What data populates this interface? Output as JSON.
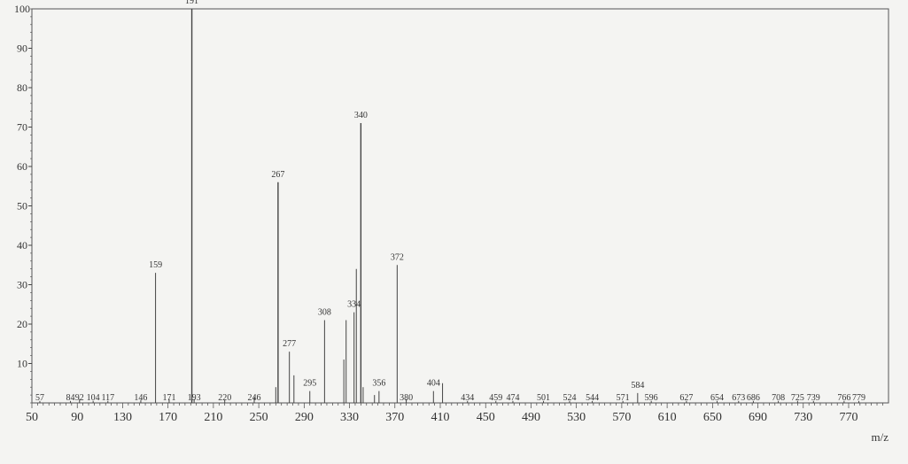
{
  "chart_data": {
    "type": "bar",
    "title": "",
    "xlabel": "m/z",
    "ylabel": "",
    "xlim": [
      50,
      805
    ],
    "ylim": [
      0,
      100
    ],
    "grid": false,
    "x_ticks": [
      50,
      90,
      130,
      170,
      210,
      250,
      290,
      330,
      370,
      410,
      450,
      490,
      530,
      570,
      610,
      650,
      690,
      730,
      770
    ],
    "y_ticks": [
      10,
      20,
      30,
      40,
      50,
      60,
      70,
      80,
      90,
      100
    ],
    "peaks": [
      {
        "mz": 57,
        "intensity": 0.5,
        "label": "57"
      },
      {
        "mz": 84,
        "intensity": 0.5,
        "label": "84"
      },
      {
        "mz": 92,
        "intensity": 1,
        "label": "92"
      },
      {
        "mz": 104,
        "intensity": 0.5,
        "label": "104"
      },
      {
        "mz": 117,
        "intensity": 0.5,
        "label": "117"
      },
      {
        "mz": 146,
        "intensity": 0.7,
        "label": "146"
      },
      {
        "mz": 159,
        "intensity": 33,
        "label": "159"
      },
      {
        "mz": 171,
        "intensity": 1,
        "label": "171"
      },
      {
        "mz": 191,
        "intensity": 100,
        "label": "191"
      },
      {
        "mz": 193,
        "intensity": 1,
        "label": "193"
      },
      {
        "mz": 220,
        "intensity": 0.7,
        "label": "220"
      },
      {
        "mz": 246,
        "intensity": 1.5,
        "label": "246"
      },
      {
        "mz": 265,
        "intensity": 4,
        "label": ""
      },
      {
        "mz": 267,
        "intensity": 56,
        "label": "267"
      },
      {
        "mz": 277,
        "intensity": 13,
        "label": "277"
      },
      {
        "mz": 281,
        "intensity": 7,
        "label": ""
      },
      {
        "mz": 295,
        "intensity": 3,
        "label": "295"
      },
      {
        "mz": 308,
        "intensity": 21,
        "label": "308"
      },
      {
        "mz": 325,
        "intensity": 11,
        "label": ""
      },
      {
        "mz": 327,
        "intensity": 21,
        "label": ""
      },
      {
        "mz": 334,
        "intensity": 23,
        "label": "334"
      },
      {
        "mz": 336,
        "intensity": 34,
        "label": ""
      },
      {
        "mz": 340,
        "intensity": 71,
        "label": "340"
      },
      {
        "mz": 342,
        "intensity": 4,
        "label": ""
      },
      {
        "mz": 352,
        "intensity": 2,
        "label": ""
      },
      {
        "mz": 356,
        "intensity": 3,
        "label": "356"
      },
      {
        "mz": 372,
        "intensity": 35,
        "label": "372"
      },
      {
        "mz": 380,
        "intensity": 1,
        "label": "380"
      },
      {
        "mz": 404,
        "intensity": 3,
        "label": "404"
      },
      {
        "mz": 412,
        "intensity": 5,
        "label": ""
      },
      {
        "mz": 434,
        "intensity": 0.5,
        "label": "434"
      },
      {
        "mz": 459,
        "intensity": 0.5,
        "label": "459"
      },
      {
        "mz": 474,
        "intensity": 0.5,
        "label": "474"
      },
      {
        "mz": 501,
        "intensity": 0.5,
        "label": "501"
      },
      {
        "mz": 524,
        "intensity": 0.5,
        "label": "524"
      },
      {
        "mz": 544,
        "intensity": 0.5,
        "label": "544"
      },
      {
        "mz": 571,
        "intensity": 0.5,
        "label": "571"
      },
      {
        "mz": 584,
        "intensity": 2.5,
        "label": "584"
      },
      {
        "mz": 596,
        "intensity": 0.5,
        "label": "596"
      },
      {
        "mz": 627,
        "intensity": 0.5,
        "label": "627"
      },
      {
        "mz": 654,
        "intensity": 0.5,
        "label": "654"
      },
      {
        "mz": 673,
        "intensity": 0.5,
        "label": "673"
      },
      {
        "mz": 686,
        "intensity": 0.5,
        "label": "686"
      },
      {
        "mz": 708,
        "intensity": 0.5,
        "label": "708"
      },
      {
        "mz": 725,
        "intensity": 0.5,
        "label": "725"
      },
      {
        "mz": 739,
        "intensity": 0.5,
        "label": "739"
      },
      {
        "mz": 766,
        "intensity": 0.5,
        "label": "766"
      },
      {
        "mz": 779,
        "intensity": 0.5,
        "label": "779"
      }
    ],
    "colors": {
      "line": "#444444",
      "background": "#f4f4f2"
    }
  }
}
